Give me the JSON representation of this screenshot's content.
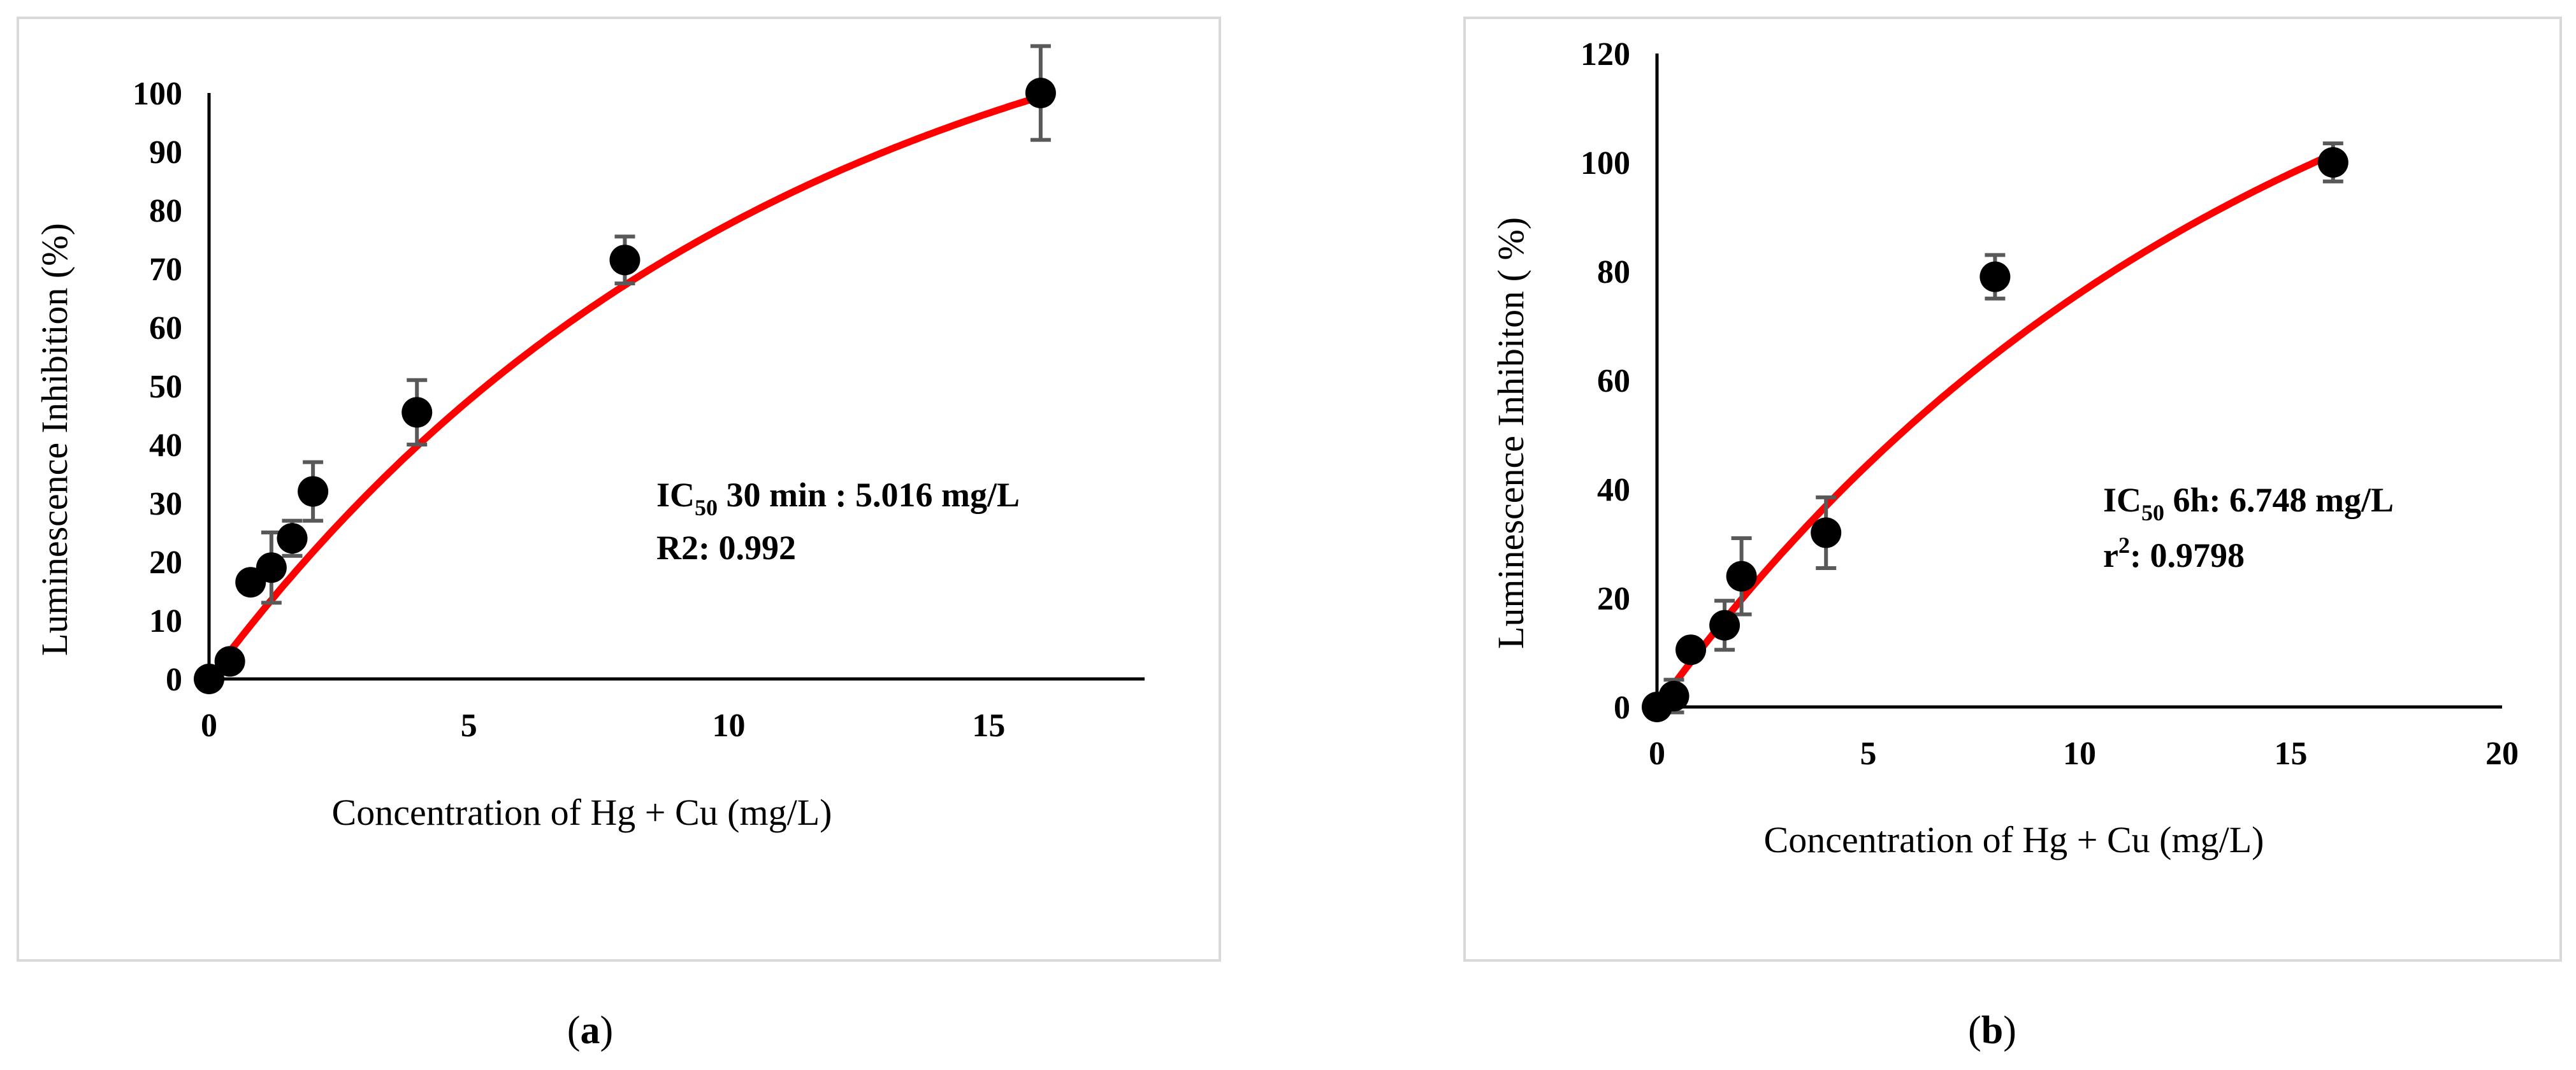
{
  "chart_data": [
    {
      "type": "scatter",
      "panel_label": "a",
      "title": "",
      "xlabel": "Concentration of Hg + Cu  (mg/L)",
      "ylabel": "Luminescence Inhibition (%)",
      "xlim": [
        0,
        18
      ],
      "ylim": [
        0,
        100
      ],
      "xticks": [
        0,
        5,
        10,
        15
      ],
      "yticks": [
        0,
        10,
        20,
        30,
        40,
        50,
        60,
        70,
        80,
        90,
        100
      ],
      "x_tick_labels": [
        "0",
        "5",
        "10",
        "15"
      ],
      "y_tick_labels": [
        "0",
        "10",
        "20",
        "30",
        "40",
        "50",
        "60",
        "70",
        "80",
        "90",
        "100"
      ],
      "series": [
        {
          "name": "measured",
          "x": [
            0,
            0.4,
            0.8,
            1.2,
            1.6,
            2,
            4,
            8,
            16
          ],
          "y": [
            0,
            3,
            16.5,
            19,
            24,
            32,
            45.5,
            71.5,
            100
          ],
          "err": [
            0,
            1.5,
            1,
            6,
            3,
            5,
            5.5,
            4,
            8
          ]
        }
      ],
      "fit": {
        "name": "fitted curve",
        "color": "#ff0000",
        "ymax": 129,
        "k": 0.092
      },
      "annotation": {
        "line1_prefix": "IC",
        "line1_sub": "50",
        "line1_rest": " 30 min : 5.016 mg/L",
        "line2": "R2: 0.992"
      },
      "colors": {
        "marker": "#000000",
        "errorbar": "#595959",
        "fit": "#ff0000",
        "frame": "#d9d9d9"
      }
    },
    {
      "type": "scatter",
      "panel_label": "b",
      "title": "",
      "xlabel": "Concentration of Hg + Cu  (mg/L)",
      "ylabel": "Luminescence Inhibiton ( %)",
      "xlim": [
        0,
        20
      ],
      "ylim": [
        0,
        120
      ],
      "xticks": [
        0,
        5,
        10,
        15,
        20
      ],
      "yticks": [
        0,
        20,
        40,
        60,
        80,
        100,
        120
      ],
      "x_tick_labels": [
        "0",
        "5",
        "10",
        "15",
        "20"
      ],
      "y_tick_labels": [
        "0",
        "20",
        "40",
        "60",
        "80",
        "100",
        "120"
      ],
      "series": [
        {
          "name": "measured",
          "x": [
            0,
            0.4,
            0.8,
            1.6,
            2,
            4,
            8,
            16
          ],
          "y": [
            0,
            2,
            10.5,
            15,
            24,
            32,
            79,
            100
          ],
          "err": [
            0,
            3,
            1.5,
            4.5,
            7,
            6.5,
            4,
            3.5
          ]
        }
      ],
      "fit": {
        "name": "fitted curve",
        "color": "#ff0000",
        "ymax": 150,
        "k": 0.0706
      },
      "annotation": {
        "line1_prefix": "IC",
        "line1_sub": "50",
        "line1_rest": " 6h: 6.748 mg/L",
        "line2_prefix": "r",
        "line2_sup": "2",
        "line2_rest": ": 0.9798"
      },
      "colors": {
        "marker": "#000000",
        "errorbar": "#595959",
        "fit": "#ff0000",
        "frame": "#d9d9d9"
      }
    }
  ]
}
